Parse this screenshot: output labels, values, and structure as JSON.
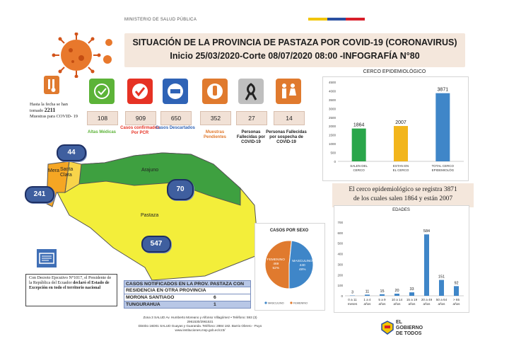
{
  "header": {
    "ministry": "MINISTERIO DE SALUD PÚBLICA",
    "title_line1": "SITUACIÓN DE LA PROVINCIA DE PASTAZA POR COVID-19 (CORONAVIRUS)",
    "title_line2": "Inicio 25/03/2020-Corte 08/07/2020 08:00 -INFOGRAFÍA N°80"
  },
  "samples_note": {
    "prefix": "Hasta la fecha se han tomado",
    "value": "2211",
    "suffix": "Muestras para COVID- 19"
  },
  "kpis": [
    {
      "value": "108",
      "label": "Altas Médicas",
      "color": "#5cb338",
      "label_color": "#5cb338",
      "icon": "medical-discharge-icon"
    },
    {
      "value": "909",
      "label": "Casos confirmados Por PCR",
      "color": "#e63224",
      "label_color": "#e63224",
      "icon": "checkmark-icon"
    },
    {
      "value": "650",
      "label": "Casos Descartados",
      "color": "#2f63b6",
      "label_color": "#2f63b6",
      "icon": "minus-icon"
    },
    {
      "value": "352",
      "label": "Muestras Pendientes",
      "color": "#e07a2e",
      "label_color": "#e07a2e",
      "icon": "lab-sample-icon"
    },
    {
      "value": "27",
      "label": "Personas Fallecidas por COVID-19",
      "color": "#bfbfbf",
      "label_color": "#222222",
      "icon": "mourning-ribbon-icon"
    },
    {
      "value": "14",
      "label": "Personas Fallecidas por sospecha de COVID-19",
      "color": "#e07a2e",
      "label_color": "#222222",
      "icon": "people-icon"
    }
  ],
  "map": {
    "regions": [
      "Arajuno",
      "Mera",
      "Santa Clara",
      "Pastaza"
    ],
    "badges": [
      "44",
      "241",
      "70",
      "547"
    ]
  },
  "decree": {
    "text_a": "Con Decreto Ejecutivo N°1017, el Presidente de la República del Ecuador ",
    "text_b": "declaró el Estado de Excepción en todo el territorio nacional"
  },
  "cases_table": {
    "header_line1": "CASOS NOTIFICADOS EN LA PROV. PASTAZA CON",
    "header_line2": "RESIDENCIA EN OTRA PROVINCIA",
    "rows": [
      {
        "province": "MORONA SANTIAGO",
        "count": "6"
      },
      {
        "province": "TUNGURAHUA",
        "count": "1"
      }
    ]
  },
  "footer": {
    "line1": "Zona 3 SALUD Av. Humberto Moreano y Alfonso Villagómez • Teléfono: 593 (3)",
    "line2": "2961530/2961531",
    "line3": "Distrito 16D01 SALUD Guayas y Guaranda. Teléfono: 2884 182. Barrio Obrero - Puyo",
    "line4": "www.instituciones.msp.gob.ec/cz3/"
  },
  "logo": {
    "line1": "EL",
    "line2": "GOBIERNO",
    "line3": "DE TODOS"
  },
  "cerco_text": {
    "line1": "El cerco epidemiológico se registra 3871",
    "line2": "de los cuales salen 1864  y están 2007"
  },
  "chart_data": [
    {
      "type": "bar",
      "title": "CERCO  EPIDEMIOLÓGICO",
      "categories": [
        "SALEN DEL CERCO",
        "ESTAN EN EL CERCO",
        "TOTAL CERCO EPIDEMIOLÓG"
      ],
      "values": [
        1864,
        2007,
        3871
      ],
      "colors": [
        "#2aa64a",
        "#f2b51c",
        "#3f86c8"
      ],
      "ylim": [
        0,
        4500
      ],
      "yticks": [
        0,
        500,
        1000,
        1500,
        2000,
        2500,
        3000,
        3500,
        4000,
        4500
      ],
      "grid": false
    },
    {
      "type": "pie",
      "title": "CASOS POR SEXO",
      "slices": [
        {
          "name": "FEMENINO",
          "value": 469,
          "percent": "52%",
          "color": "#e07a2e"
        },
        {
          "name": "MASCULINO",
          "value": 440,
          "percent": "48%",
          "color": "#3f86c8"
        }
      ],
      "legend": [
        "MASCULINO",
        "FEMENINO"
      ],
      "legend_position": "bottom"
    },
    {
      "type": "bar",
      "title": "EDADES",
      "categories": [
        "0 a 11 meses",
        "1 a 4 años",
        "5 a 9 años",
        "10 a 14 años",
        "15 a 19 años",
        "20 a 49 años",
        "50 a 64 años",
        "> 65 años"
      ],
      "values": [
        3,
        11,
        15,
        20,
        33,
        584,
        151,
        92
      ],
      "color": "#3f86c8",
      "ylim": [
        0,
        700
      ],
      "yticks": [
        0,
        100,
        200,
        300,
        400,
        500,
        600,
        700
      ],
      "grid": false
    }
  ]
}
